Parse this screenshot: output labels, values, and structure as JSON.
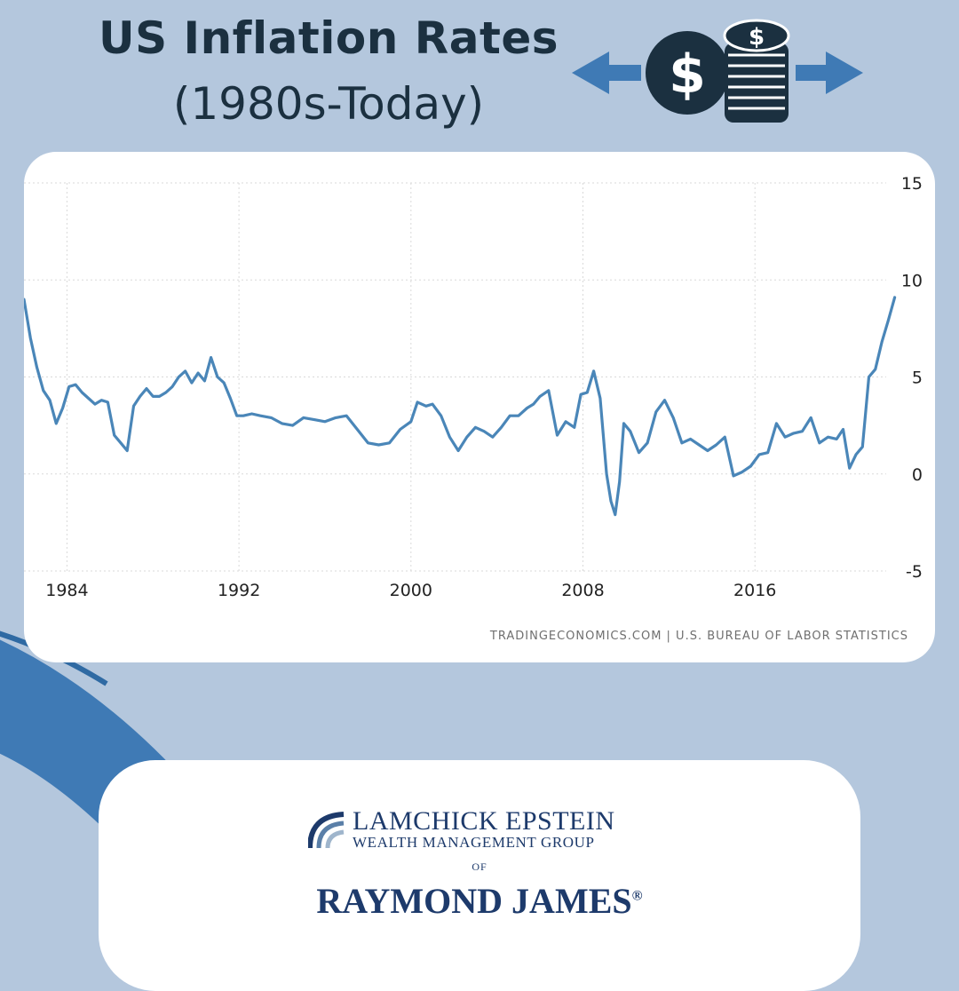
{
  "header": {
    "title": "US Inflation Rates",
    "subtitle": "(1980s-Today)",
    "dollar_symbol": "$",
    "graphic_icon": "dollar-coin-stack-with-arrows"
  },
  "chart_data": {
    "type": "line",
    "title": "",
    "xlabel": "",
    "ylabel": "",
    "x_ticks": [
      "1984",
      "1992",
      "2000",
      "2008",
      "2016"
    ],
    "y_ticks": [
      "15",
      "10",
      "5",
      "0",
      "-5"
    ],
    "xlim": [
      1982.0,
      2022.6
    ],
    "ylim": [
      -5,
      15
    ],
    "grid": true,
    "y_axis_side": "right",
    "line_color": "#4a86b8",
    "series": [
      {
        "x": [
          1982.0,
          1982.3,
          1982.6,
          1982.9,
          1983.2,
          1983.5,
          1983.8,
          1984.1,
          1984.4,
          1984.7,
          1985.0,
          1985.3,
          1985.6,
          1985.9,
          1986.2,
          1986.5,
          1986.8,
          1987.1,
          1987.4,
          1987.7,
          1988.0,
          1988.3,
          1988.6,
          1988.9,
          1989.2,
          1989.5,
          1989.8,
          1990.1,
          1990.4,
          1990.7,
          1991.0,
          1991.3,
          1991.6,
          1991.9,
          1992.2,
          1992.6,
          1993.0,
          1993.5,
          1994.0,
          1994.5,
          1995.0,
          1995.5,
          1996.0,
          1996.5,
          1997.0,
          1997.5,
          1998.0,
          1998.5,
          1999.0,
          1999.5,
          2000.0,
          2000.3,
          2000.7,
          2001.0,
          2001.4,
          2001.8,
          2002.2,
          2002.6,
          2003.0,
          2003.4,
          2003.8,
          2004.2,
          2004.6,
          2005.0,
          2005.4,
          2005.7,
          2006.0,
          2006.4,
          2006.8,
          2007.2,
          2007.6,
          2007.9,
          2008.2,
          2008.5,
          2008.8,
          2009.1,
          2009.3,
          2009.5,
          2009.7,
          2009.9,
          2010.2,
          2010.6,
          2011.0,
          2011.4,
          2011.8,
          2012.2,
          2012.6,
          2013.0,
          2013.4,
          2013.8,
          2014.2,
          2014.6,
          2015.0,
          2015.4,
          2015.8,
          2016.2,
          2016.6,
          2017.0,
          2017.4,
          2017.8,
          2018.2,
          2018.6,
          2019.0,
          2019.4,
          2019.8,
          2020.1,
          2020.4,
          2020.7,
          2021.0,
          2021.3,
          2021.6,
          2021.9,
          2022.2,
          2022.5
        ],
        "y": [
          9.0,
          7.0,
          5.5,
          4.3,
          3.8,
          2.6,
          3.4,
          4.5,
          4.6,
          4.2,
          3.9,
          3.6,
          3.8,
          3.7,
          2.0,
          1.6,
          1.2,
          3.5,
          4.0,
          4.4,
          4.0,
          4.0,
          4.2,
          4.5,
          5.0,
          5.3,
          4.7,
          5.2,
          4.8,
          6.0,
          5.0,
          4.7,
          3.9,
          3.0,
          3.0,
          3.1,
          3.0,
          2.9,
          2.6,
          2.5,
          2.9,
          2.8,
          2.7,
          2.9,
          3.0,
          2.3,
          1.6,
          1.5,
          1.6,
          2.3,
          2.7,
          3.7,
          3.5,
          3.6,
          3.0,
          1.9,
          1.2,
          1.9,
          2.4,
          2.2,
          1.9,
          2.4,
          3.0,
          3.0,
          3.4,
          3.6,
          4.0,
          4.3,
          2.0,
          2.7,
          2.4,
          4.1,
          4.2,
          5.3,
          3.9,
          0.0,
          -1.4,
          -2.1,
          -0.4,
          2.6,
          2.2,
          1.1,
          1.6,
          3.2,
          3.8,
          2.9,
          1.6,
          1.8,
          1.5,
          1.2,
          1.5,
          1.9,
          -0.1,
          0.1,
          0.4,
          1.0,
          1.1,
          2.6,
          1.9,
          2.1,
          2.2,
          2.9,
          1.6,
          1.9,
          1.8,
          2.3,
          0.3,
          1.0,
          1.4,
          5.0,
          5.4,
          6.8,
          7.9,
          9.1
        ]
      }
    ],
    "source": "TRADINGECONOMICS.COM  |  U.S. BUREAU OF LABOR STATISTICS"
  },
  "logo": {
    "line1": "LAMCHICK EPSTEIN",
    "line2": "WEALTH MANAGEMENT GROUP",
    "of": "OF",
    "brand": "RAYMOND JAMES",
    "brand_mark": "®",
    "brand_color": "#1d3a6b"
  },
  "colors": {
    "background": "#b4c7dd",
    "accent_blue": "#3f7ab5",
    "dark_navy": "#1b3040"
  }
}
